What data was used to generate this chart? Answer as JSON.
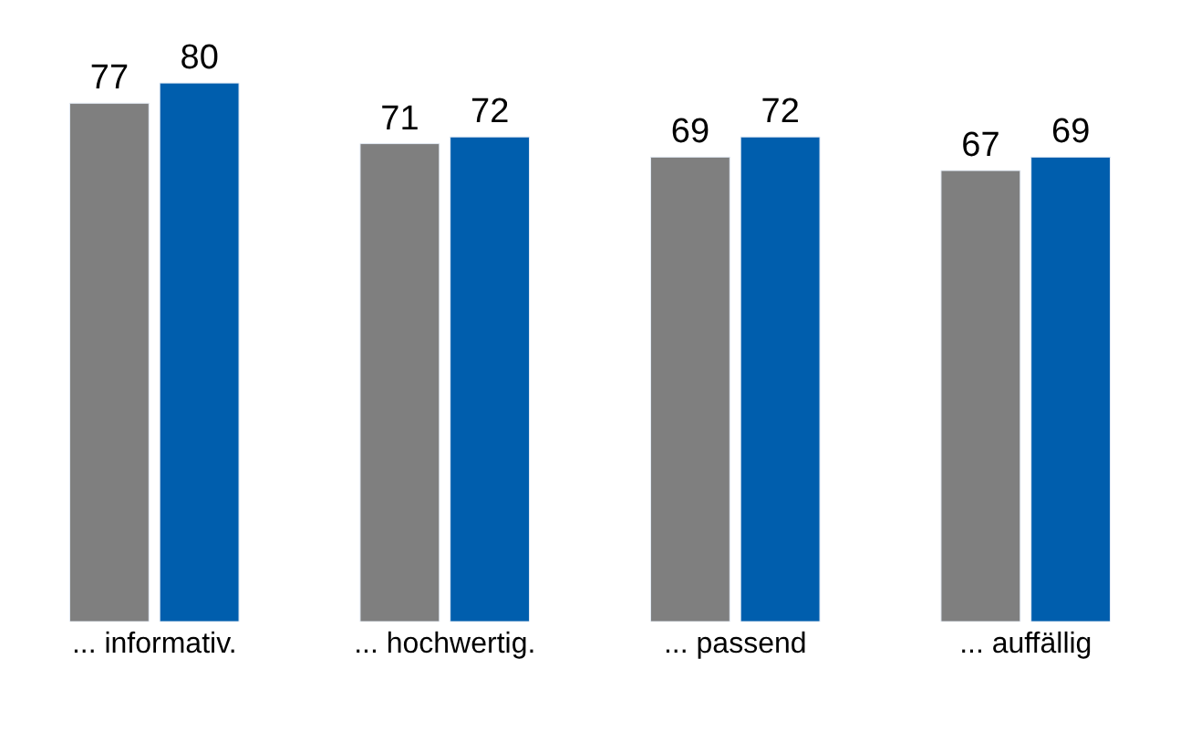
{
  "chart_data": {
    "type": "bar",
    "categories": [
      "... informativ.",
      "... hochwertig.",
      "... passend",
      "... auffällig"
    ],
    "series": [
      {
        "color": "#7f7f7f",
        "values": [
          77,
          71,
          69,
          67
        ]
      },
      {
        "color": "#005ead",
        "values": [
          80,
          72,
          72,
          69
        ]
      }
    ],
    "data_labels": true
  }
}
